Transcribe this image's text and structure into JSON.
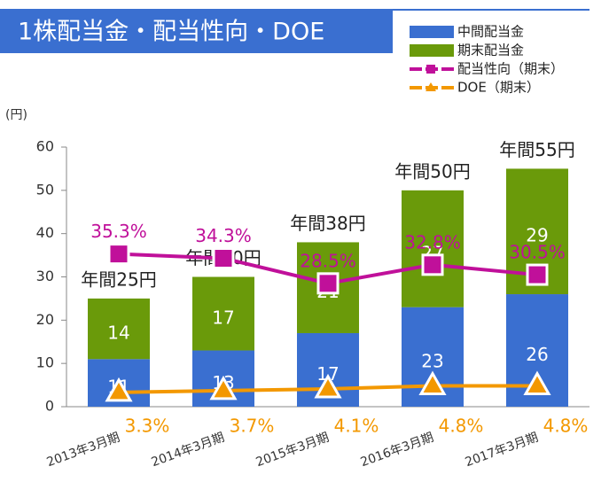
{
  "chart_data": {
    "type": "bar",
    "title": "1株配当金・配当性向・DOE",
    "y_label": "(円)",
    "categories": [
      "2013年3月期",
      "2014年3月期",
      "2015年3月期",
      "2016年3月期",
      "2017年3月期"
    ],
    "total_labels": [
      "年間25円",
      "年間30円",
      "年間38円",
      "年間50円",
      "年間55円"
    ],
    "series": [
      {
        "name": "中間配当金",
        "type": "bar",
        "color": "#3a6fd0",
        "values": [
          11,
          13,
          17,
          23,
          26
        ]
      },
      {
        "name": "期末配当金",
        "type": "bar",
        "color": "#6a9a0a",
        "values": [
          14,
          17,
          21,
          27,
          29
        ]
      },
      {
        "name": "配当性向（期末）",
        "type": "line",
        "color": "#c0109a",
        "values": [
          35.3,
          34.3,
          28.5,
          32.8,
          30.5
        ],
        "value_labels": [
          "35.3%",
          "34.3%",
          "28.5%",
          "32.8%",
          "30.5%"
        ]
      },
      {
        "name": "DOE（期末）",
        "type": "line",
        "color": "#f39800",
        "values": [
          3.3,
          3.7,
          4.1,
          4.8,
          4.8
        ],
        "value_labels": [
          "3.3%",
          "3.7%",
          "4.1%",
          "4.8%",
          "4.8%"
        ]
      }
    ],
    "ylim": [
      0,
      60
    ],
    "yticks": [
      0,
      10,
      20,
      30,
      40,
      50,
      60
    ],
    "grid": false
  }
}
